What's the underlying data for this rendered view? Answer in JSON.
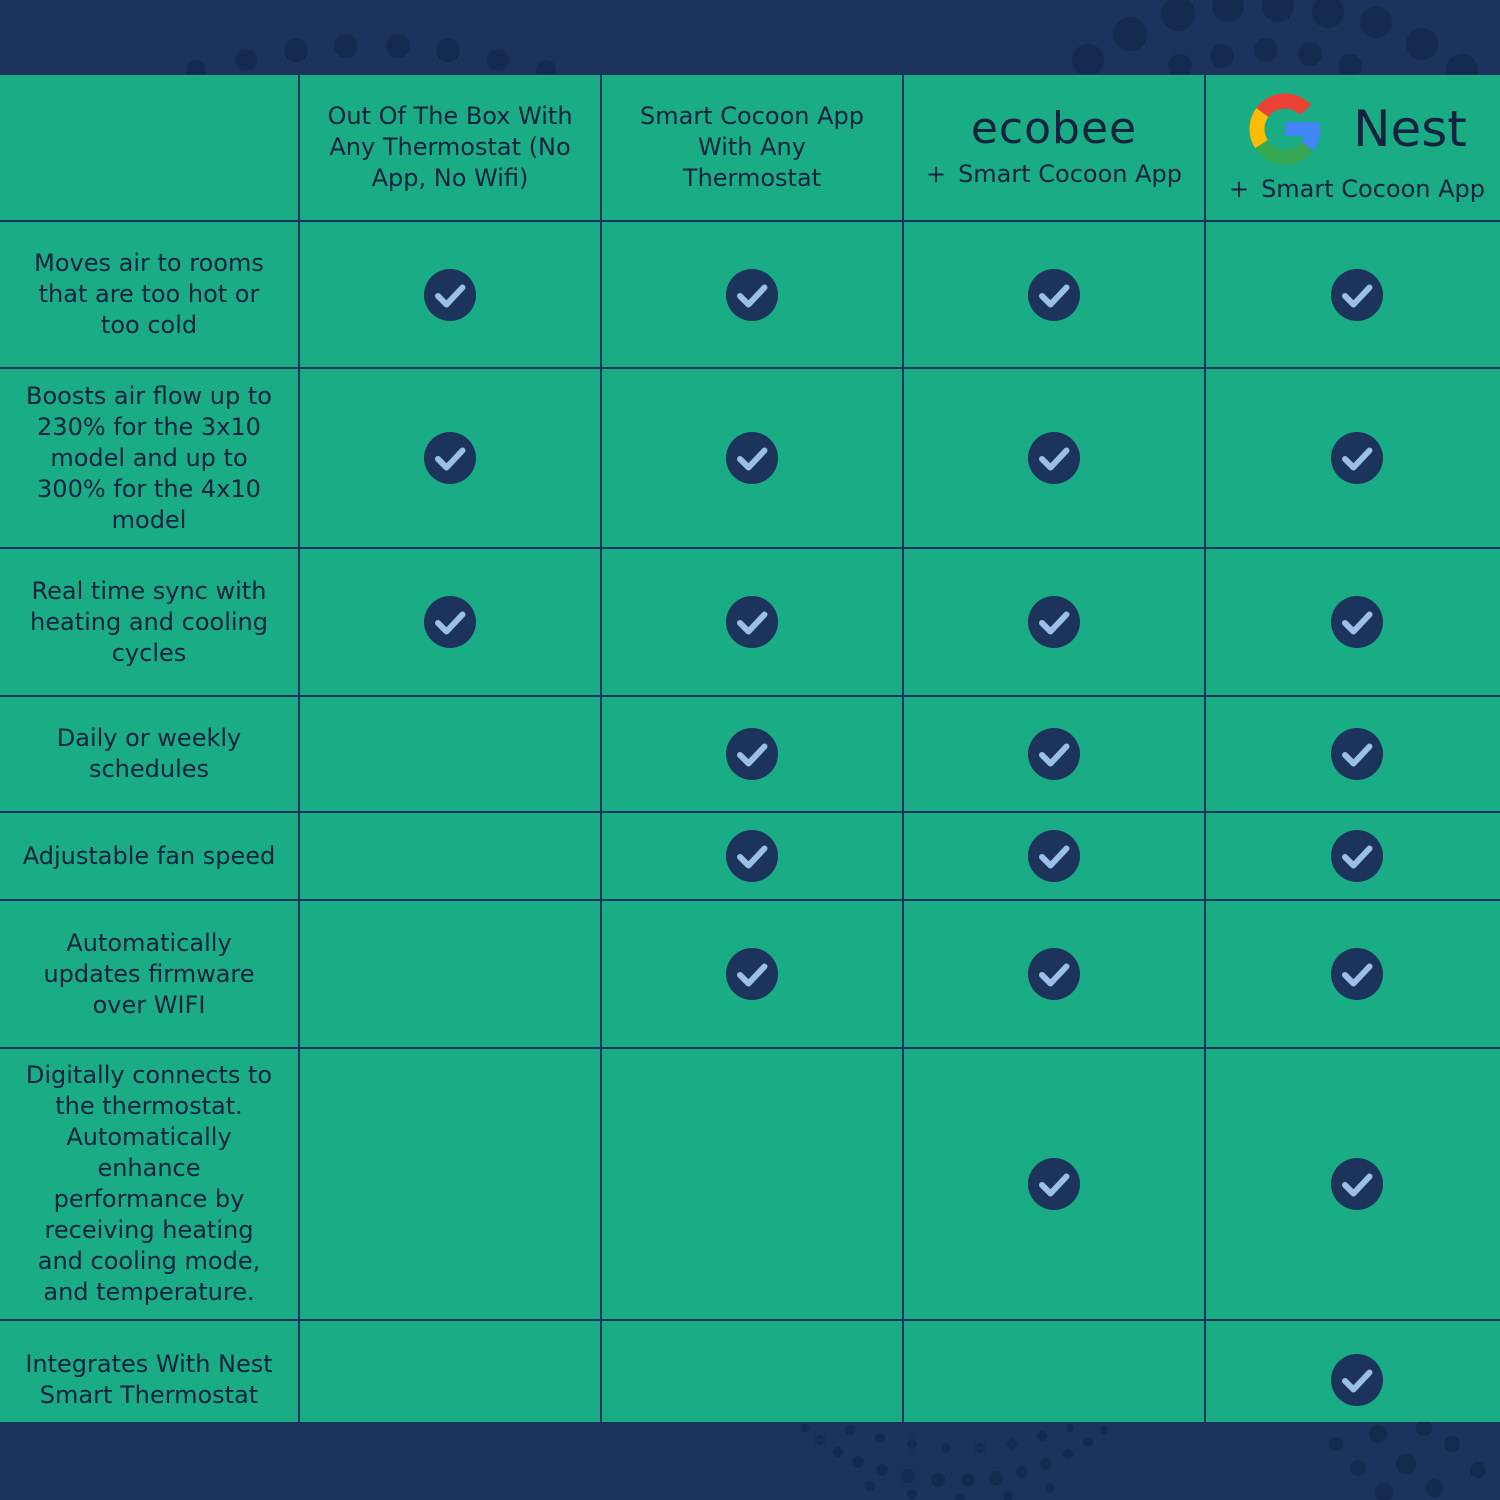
{
  "columns": [
    {
      "label": "Out Of The Box With\nAny Thermostat (No\nApp, No Wifi)"
    },
    {
      "label": "Smart Cocoon App\nWith Any\nThermostat"
    },
    {
      "brand": "ecobee",
      "plus": "+",
      "suffix": "Smart Cocoon App"
    },
    {
      "brand": "Nest",
      "logo_icon": "google-g-icon",
      "plus": "+",
      "suffix": "Smart Cocoon App"
    }
  ],
  "rows": [
    {
      "feature": "Moves air to rooms\nthat are too hot or\ntoo cold",
      "checks": [
        true,
        true,
        true,
        true
      ]
    },
    {
      "feature": "Boosts air flow up to\n230% for the 3x10\nmodel and up to\n300% for the 4x10\nmodel",
      "checks": [
        true,
        true,
        true,
        true
      ]
    },
    {
      "feature": "Real time sync with\nheating and cooling\ncycles",
      "checks": [
        true,
        true,
        true,
        true
      ]
    },
    {
      "feature": "Daily or weekly\nschedules",
      "checks": [
        false,
        true,
        true,
        true
      ]
    },
    {
      "feature": "Adjustable fan speed",
      "checks": [
        false,
        true,
        true,
        true
      ]
    },
    {
      "feature": "Automatically\nupdates firmware\nover WIFI",
      "checks": [
        false,
        true,
        true,
        true
      ]
    },
    {
      "feature": "Digitally connects to\nthe thermostat.\nAutomatically\nenhance\nperformance by\nreceiving heating\nand cooling mode,\nand temperature.",
      "checks": [
        false,
        false,
        true,
        true
      ]
    },
    {
      "feature": "Integrates With Nest\nSmart Thermostat",
      "checks": [
        false,
        false,
        false,
        true
      ]
    }
  ],
  "check_icon": "check-circle-icon",
  "colors": {
    "background": "#1c335c",
    "cell": "#1aac85",
    "text": "#16233f",
    "check_circle": "#1c335c",
    "check_mark": "#9bbfe6"
  }
}
